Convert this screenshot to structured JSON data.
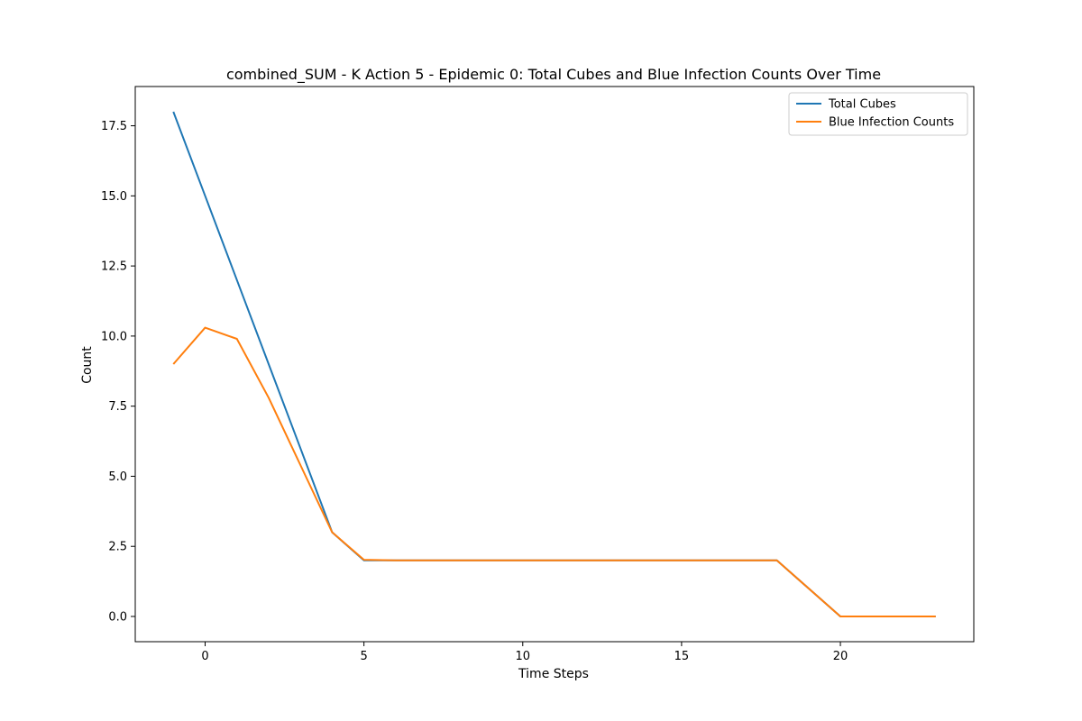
{
  "chart_data": {
    "type": "line",
    "title": "combined_SUM - K Action 5 - Epidemic 0: Total Cubes and Blue Infection Counts Over Time",
    "xlabel": "Time Steps",
    "ylabel": "Count",
    "xlim": [
      -2.2,
      24.2
    ],
    "ylim": [
      -0.9,
      18.9
    ],
    "x_ticks": [
      0,
      5,
      10,
      15,
      20
    ],
    "y_ticks": [
      0.0,
      2.5,
      5.0,
      7.5,
      10.0,
      12.5,
      15.0,
      17.5
    ],
    "x_tick_labels": [
      "0",
      "5",
      "10",
      "15",
      "20"
    ],
    "y_tick_labels": [
      "0.0",
      "2.5",
      "5.0",
      "7.5",
      "10.0",
      "12.5",
      "15.0",
      "17.5"
    ],
    "grid": false,
    "legend_position": "top-right",
    "series": [
      {
        "name": "Total Cubes",
        "color": "#1f77b4",
        "x": [
          -1,
          0,
          1,
          2,
          3,
          4,
          5,
          6,
          7,
          8,
          9,
          10,
          11,
          12,
          13,
          14,
          15,
          16,
          17,
          18,
          19,
          20,
          21,
          22,
          23
        ],
        "y": [
          18,
          15,
          12,
          9,
          6,
          3,
          2,
          2,
          2,
          2,
          2,
          2,
          2,
          2,
          2,
          2,
          2,
          2,
          2,
          2,
          1,
          0,
          0,
          0,
          0
        ]
      },
      {
        "name": "Blue Infection Counts",
        "color": "#ff7f0e",
        "x": [
          -1,
          0,
          1,
          2,
          3,
          4,
          5,
          6,
          7,
          8,
          9,
          10,
          11,
          12,
          13,
          14,
          15,
          16,
          17,
          18,
          19,
          20,
          21,
          22,
          23
        ],
        "y": [
          9,
          10.3,
          9.9,
          7.8,
          5.4,
          3,
          2.02,
          2,
          2,
          2,
          2,
          2,
          2,
          2,
          2,
          2,
          2,
          2,
          2,
          2,
          1,
          0,
          0,
          0,
          0
        ]
      }
    ]
  }
}
